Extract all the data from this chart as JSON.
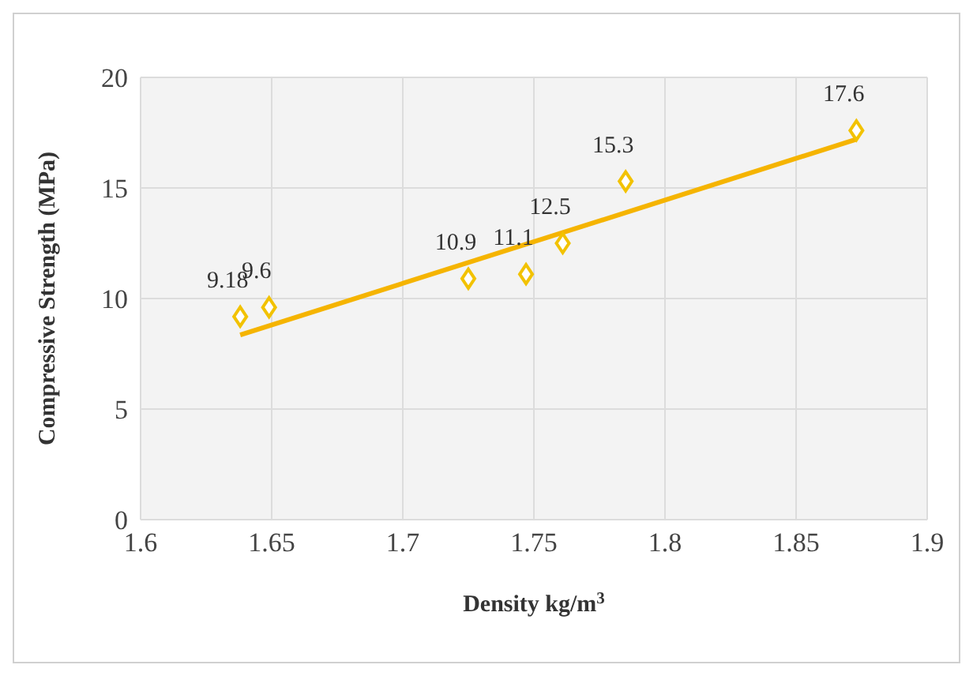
{
  "chart_data": {
    "type": "scatter",
    "xlabel": "Density kg/m$^{3}$",
    "ylabel": "Compressive Strength (MPa)",
    "xlim": [
      1.6,
      1.9
    ],
    "xticks": [
      1.6,
      1.65,
      1.7,
      1.75,
      1.8,
      1.85,
      1.9
    ],
    "ylim": [
      0,
      20
    ],
    "yticks": [
      0,
      5,
      10,
      15,
      20
    ],
    "grid": true,
    "legend": false,
    "series": [
      {
        "color": "#f2c200",
        "marker": "diamond",
        "x": [
          1.638,
          1.649,
          1.725,
          1.747,
          1.761,
          1.785,
          1.873
        ],
        "values": [
          9.18,
          9.6,
          10.9,
          11.1,
          12.5,
          15.3,
          17.6
        ],
        "value_labels": [
          "9.18",
          "9.6",
          "10.9",
          "11.1",
          "12.5",
          "15.3",
          "17.6"
        ]
      },
      {
        "type": "line",
        "color": "#f5b400",
        "marker": "none",
        "x": [
          1.638,
          1.873
        ],
        "values": [
          8.35,
          17.2
        ]
      }
    ]
  }
}
